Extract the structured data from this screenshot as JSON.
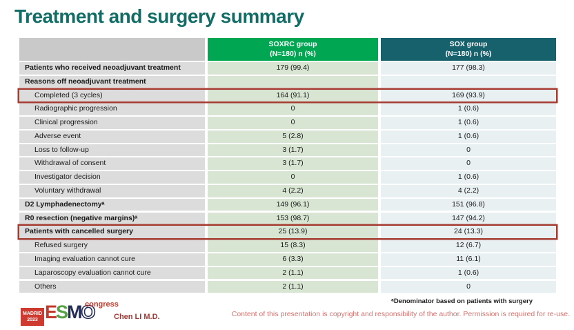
{
  "slide": {
    "title": "Treatment and surgery summary",
    "presenter": "Chen LI M.D.",
    "footnote": "ᵃDenominator based on patients with surgery",
    "copyright": "Content of this presentation is copyright and responsibility of the author. Permission is required for re-use."
  },
  "logo": {
    "badge_line1": "MADRID",
    "badge_line2": "2023",
    "letter_e": "E",
    "letter_s": "S",
    "letter_m": "M",
    "letter_o": "O",
    "congress": "congress"
  },
  "colors": {
    "title_teal": "#116d66",
    "soxrc_header_green": "#00a651",
    "sox_header_teal": "#17616c",
    "label_cell_gray": "#dcdcdc",
    "soxrc_cell_green": "#d7e5d2",
    "sox_cell_blue": "#e8f0f1",
    "highlight_red": "#a63b32",
    "logo_red": "#cf3a30"
  },
  "table": {
    "columns": [
      {
        "name": "",
        "sub": ""
      },
      {
        "name": "SOXRC group",
        "sub": "(N=180)  n (%)"
      },
      {
        "name": "SOX group",
        "sub": "(N=180)  n (%)"
      }
    ],
    "rows": [
      {
        "label": "Patients who received neoadjuvant treatment",
        "soxrc": "179 (99.4)",
        "sox": "177 (98.3)",
        "bold": true,
        "indent": false,
        "highlight": false
      },
      {
        "label": "Reasons off neoadjuvant treatment",
        "soxrc": "",
        "sox": "",
        "bold": true,
        "indent": false,
        "highlight": false
      },
      {
        "label": "Completed (3 cycles)",
        "soxrc": "164 (91.1)",
        "sox": "169 (93.9)",
        "bold": false,
        "indent": true,
        "highlight": true
      },
      {
        "label": "Radiographic progression",
        "soxrc": "0",
        "sox": "1 (0.6)",
        "bold": false,
        "indent": true,
        "highlight": false
      },
      {
        "label": "Clinical progression",
        "soxrc": "0",
        "sox": "1 (0.6)",
        "bold": false,
        "indent": true,
        "highlight": false
      },
      {
        "label": "Adverse event",
        "soxrc": "5 (2.8)",
        "sox": "1 (0.6)",
        "bold": false,
        "indent": true,
        "highlight": false
      },
      {
        "label": "Loss to follow-up",
        "soxrc": "3 (1.7)",
        "sox": "0",
        "bold": false,
        "indent": true,
        "highlight": false
      },
      {
        "label": "Withdrawal of consent",
        "soxrc": "3 (1.7)",
        "sox": "0",
        "bold": false,
        "indent": true,
        "highlight": false
      },
      {
        "label": "Investigator decision",
        "soxrc": "0",
        "sox": "1 (0.6)",
        "bold": false,
        "indent": true,
        "highlight": false
      },
      {
        "label": "Voluntary withdrawal",
        "soxrc": "4 (2.2)",
        "sox": "4 (2.2)",
        "bold": false,
        "indent": true,
        "highlight": false
      },
      {
        "label": "D2 Lymphadenectomyᵃ",
        "soxrc": "149 (96.1)",
        "sox": "151 (96.8)",
        "bold": true,
        "indent": false,
        "highlight": false
      },
      {
        "label": "R0 resection (negative margins)ᵃ",
        "soxrc": "153 (98.7)",
        "sox": "147 (94.2)",
        "bold": true,
        "indent": false,
        "highlight": false
      },
      {
        "label": "Patients with cancelled surgery",
        "soxrc": "25 (13.9)",
        "sox": "24 (13.3)",
        "bold": true,
        "indent": false,
        "highlight": true
      },
      {
        "label": "Refused surgery",
        "soxrc": "15 (8.3)",
        "sox": "12 (6.7)",
        "bold": false,
        "indent": true,
        "highlight": false
      },
      {
        "label": "Imaging evaluation cannot cure",
        "soxrc": "6 (3.3)",
        "sox": "11 (6.1)",
        "bold": false,
        "indent": true,
        "highlight": false
      },
      {
        "label": "Laparoscopy evaluation cannot cure",
        "soxrc": "2 (1.1)",
        "sox": "1 (0.6)",
        "bold": false,
        "indent": true,
        "highlight": false
      },
      {
        "label": "Others",
        "soxrc": "2 (1.1)",
        "sox": "0",
        "bold": false,
        "indent": true,
        "highlight": false
      }
    ]
  }
}
